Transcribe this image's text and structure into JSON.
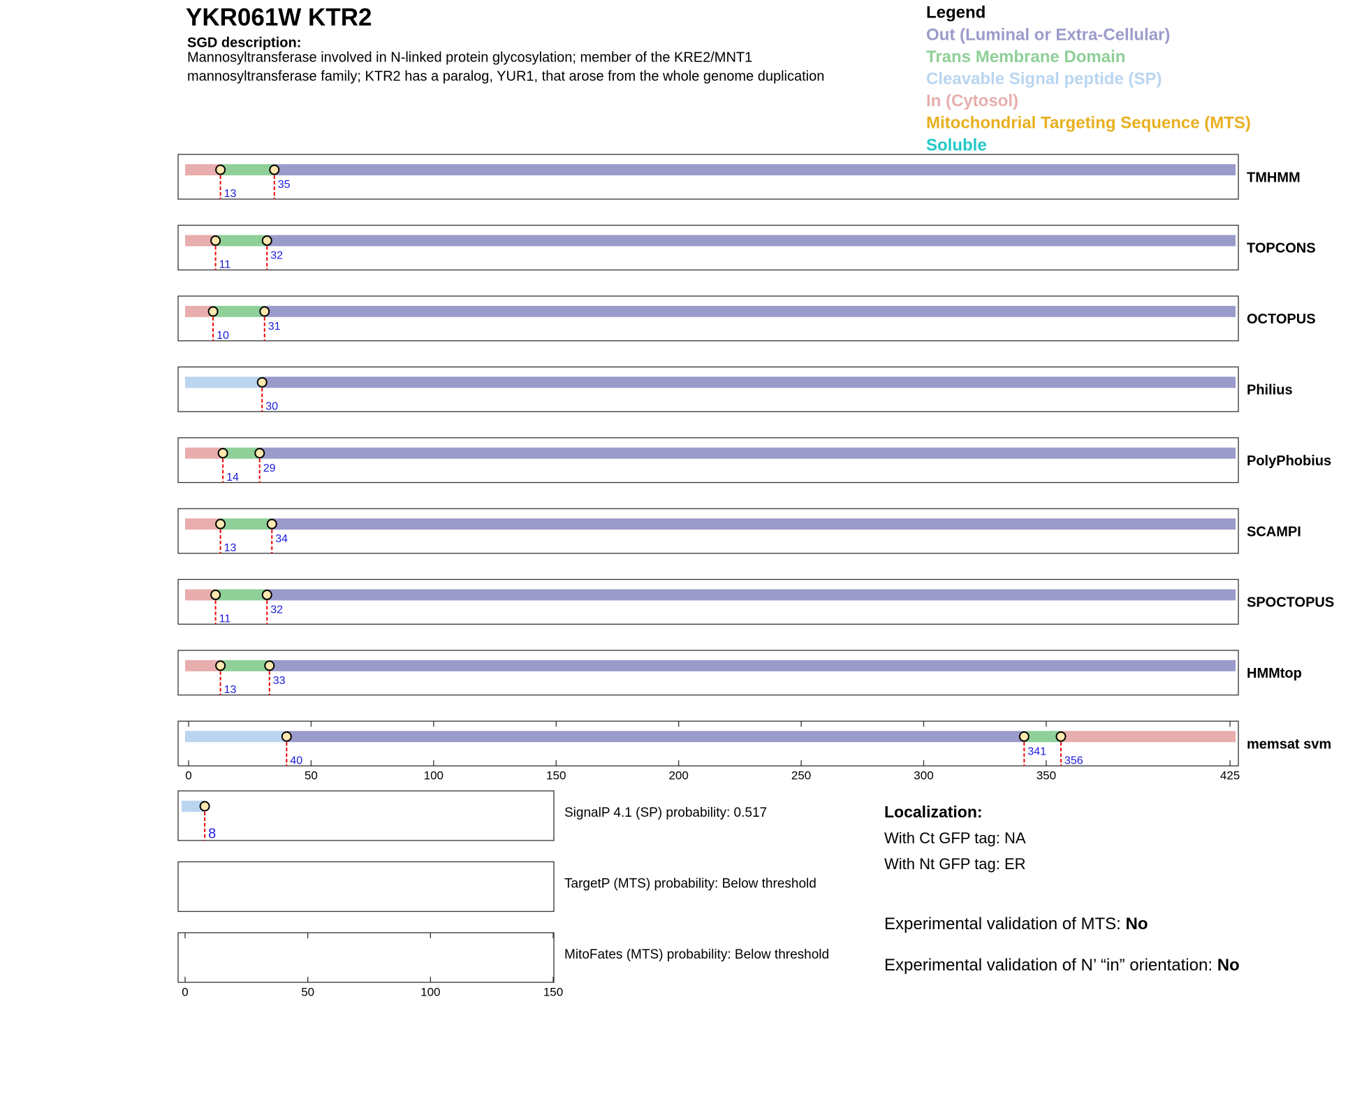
{
  "header": {
    "title": "YKR061W  KTR2",
    "description_label": "SGD description:",
    "description_lines": [
      "Mannosyltransferase involved in N-linked protein glycosylation; member of the KRE2/MNT1",
      "mannosyltransferase family; KTR2 has a paralog, YUR1, that arose from the whole genome duplication"
    ]
  },
  "legend": {
    "title": "Legend",
    "items": [
      {
        "label": "Out (Luminal or Extra-Cellular)",
        "color": "#9b9bcb"
      },
      {
        "label": "Trans Membrane Domain",
        "color": "#8fcf98"
      },
      {
        "label": "Cleavable Signal peptide (SP)",
        "color": "#b9d5f0"
      },
      {
        "label": "In (Cytosol)",
        "color": "#e8adad"
      },
      {
        "label": "Mitochondrial Targeting Sequence (MTS)",
        "color": "#e8b020"
      },
      {
        "label": "Soluble",
        "color": "#22c8c8"
      }
    ]
  },
  "chart_data": [
    {
      "type": "topology",
      "xlim": [
        0,
        425
      ],
      "xticks": [
        0,
        50,
        100,
        150,
        200,
        250,
        300,
        350,
        425
      ],
      "tracks": [
        {
          "name": "TMHMM",
          "boundaries": [
            13,
            35
          ],
          "colors": [
            "#e8adad",
            "#8fcf98",
            "#9b9bcb"
          ]
        },
        {
          "name": "TOPCONS",
          "boundaries": [
            11,
            32
          ],
          "colors": [
            "#e8adad",
            "#8fcf98",
            "#9b9bcb"
          ]
        },
        {
          "name": "OCTOPUS",
          "boundaries": [
            10,
            31
          ],
          "colors": [
            "#e8adad",
            "#8fcf98",
            "#9b9bcb"
          ]
        },
        {
          "name": "Philius",
          "boundaries": [
            30
          ],
          "colors": [
            "#b9d5f0",
            "#9b9bcb"
          ]
        },
        {
          "name": "PolyPhobius",
          "boundaries": [
            14,
            29
          ],
          "colors": [
            "#e8adad",
            "#8fcf98",
            "#9b9bcb"
          ]
        },
        {
          "name": "SCAMPI",
          "boundaries": [
            13,
            34
          ],
          "colors": [
            "#e8adad",
            "#8fcf98",
            "#9b9bcb"
          ]
        },
        {
          "name": "SPOCTOPUS",
          "boundaries": [
            11,
            32
          ],
          "colors": [
            "#e8adad",
            "#8fcf98",
            "#9b9bcb"
          ]
        },
        {
          "name": "HMMtop",
          "boundaries": [
            13,
            33
          ],
          "colors": [
            "#e8adad",
            "#8fcf98",
            "#9b9bcb"
          ]
        },
        {
          "name": "memsat svm",
          "boundaries": [
            40,
            341,
            356
          ],
          "colors": [
            "#b9d5f0",
            "#9b9bcb",
            "#8fcf98",
            "#e8adad"
          ]
        }
      ]
    },
    {
      "type": "topology",
      "xlim": [
        0,
        150
      ],
      "xticks": [
        0,
        50,
        100,
        150
      ],
      "tracks": [
        {
          "name": "SignalP 4.1 (SP) probability: 0.517",
          "boundaries": [
            8
          ],
          "colors": [
            "#b9d5f0"
          ]
        },
        {
          "name": "TargetP (MTS) probability: Below threshold",
          "boundaries": [],
          "colors": []
        },
        {
          "name": "MitoFates (MTS) probability: Below threshold",
          "boundaries": [],
          "colors": []
        }
      ]
    }
  ],
  "localization": {
    "title": "Localization:",
    "lines": [
      "With Ct GFP tag: NA",
      "With Nt GFP tag: ER"
    ],
    "validations": [
      {
        "label": "Experimental validation of MTS:",
        "value": "No"
      },
      {
        "label": "Experimental validation of N’ “in” orientation:",
        "value": "No"
      }
    ]
  }
}
